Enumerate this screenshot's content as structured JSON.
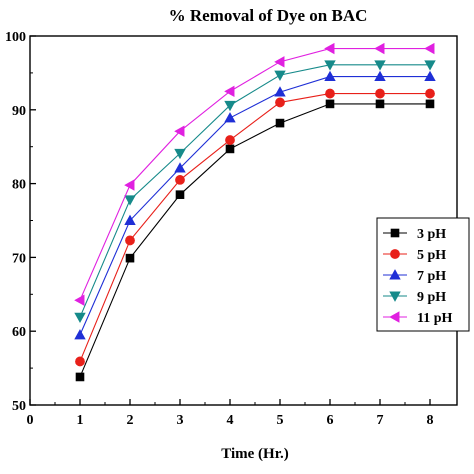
{
  "chart_data": {
    "type": "line",
    "title": "% Removal of Dye on BAC",
    "xlabel": "Time (Hr.)",
    "ylabel": "",
    "xlim": [
      0,
      8
    ],
    "ylim": [
      50,
      100
    ],
    "xticks": [
      "0",
      "1",
      "2",
      "3",
      "4",
      "5",
      "6",
      "7",
      "8"
    ],
    "yticks": [
      "50",
      "60",
      "70",
      "80",
      "90",
      "100"
    ],
    "x": [
      1,
      2,
      3,
      4,
      5,
      6,
      7,
      8
    ],
    "legend_position": "right",
    "grid": false,
    "series": [
      {
        "name": "3 pH",
        "color": "#000000",
        "marker": "square",
        "values": [
          53.8,
          69.9,
          78.5,
          84.7,
          88.2,
          90.8,
          90.8,
          90.8
        ]
      },
      {
        "name": "5 pH",
        "color": "#e8201a",
        "marker": "circle",
        "values": [
          55.9,
          72.3,
          80.5,
          85.9,
          91.0,
          92.2,
          92.2,
          92.2
        ]
      },
      {
        "name": "7 pH",
        "color": "#1f2fd6",
        "marker": "triangle-up",
        "values": [
          59.5,
          75.0,
          82.1,
          88.9,
          92.4,
          94.5,
          94.5,
          94.5
        ]
      },
      {
        "name": "9 pH",
        "color": "#168a8a",
        "marker": "triangle-down",
        "values": [
          61.9,
          77.8,
          84.1,
          90.6,
          94.7,
          96.1,
          96.1,
          96.1
        ]
      },
      {
        "name": "11 pH",
        "color": "#e020e0",
        "marker": "triangle-left",
        "values": [
          64.2,
          79.8,
          87.1,
          92.5,
          96.5,
          98.3,
          98.3,
          98.3
        ]
      }
    ]
  }
}
